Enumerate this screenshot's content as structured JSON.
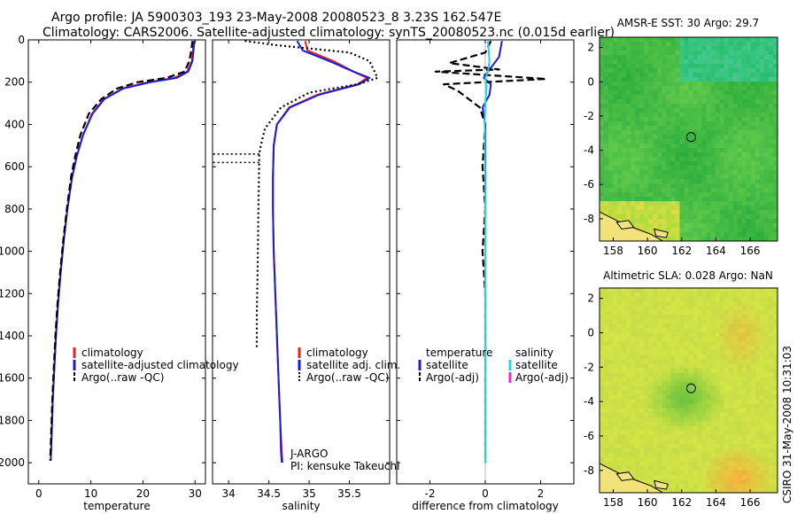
{
  "header": {
    "line1": "Argo profile: JA 5900303_193 23-May-2008 20080523_8 3.23S 162.547E",
    "line2": "Climatology: CARS2006. Satellite-adjusted climatology: synTS_20080523.nc (0.015d earlier)"
  },
  "side_note": "CSIRO 31-May-2008 10:31:03",
  "colors": {
    "climatology": "#e8231e",
    "satellite": "#1a1adc",
    "argo": "#000000",
    "satellite_salinity": "#22d4e8",
    "argo_adj_salinity": "#d930d0"
  },
  "chart_data": [
    {
      "type": "line",
      "panel": "temperature",
      "xlabel": "temperature",
      "ylabel": "",
      "xlim": [
        -2,
        32
      ],
      "ylim": [
        0,
        2100
      ],
      "y_reversed": true,
      "x_ticks": [
        0,
        10,
        20,
        30
      ],
      "y_ticks": [
        0,
        200,
        400,
        600,
        800,
        1000,
        1200,
        1400,
        1600,
        1800,
        2000
      ],
      "legend": [
        "climatology",
        "satellite-adjusted climatology",
        "Argo(..raw -QC)"
      ],
      "series": [
        {
          "name": "climatology",
          "style": "solid",
          "color": "#e8231e",
          "x": [
            29.8,
            29.6,
            29.4,
            28.5,
            26.0,
            21.0,
            16.0,
            12.5,
            10.2,
            8.5,
            7.3,
            6.4,
            5.5,
            4.8,
            4.2,
            3.7,
            3.3,
            3.0,
            2.7,
            2.5,
            2.3
          ],
          "y": [
            5,
            50,
            100,
            150,
            180,
            200,
            230,
            280,
            350,
            450,
            550,
            650,
            800,
            950,
            1100,
            1250,
            1400,
            1550,
            1700,
            1850,
            1990
          ]
        },
        {
          "name": "satellite-adjusted climatology",
          "style": "solid",
          "color": "#1a1adc",
          "x": [
            29.9,
            29.7,
            29.5,
            28.7,
            26.5,
            21.5,
            16.2,
            12.6,
            10.3,
            8.5,
            7.3,
            6.4,
            5.5,
            4.8,
            4.2,
            3.7,
            3.3,
            3.0,
            2.7,
            2.5,
            2.3
          ],
          "y": [
            5,
            50,
            100,
            150,
            180,
            200,
            230,
            280,
            350,
            450,
            550,
            650,
            800,
            950,
            1100,
            1250,
            1400,
            1550,
            1700,
            1850,
            1990
          ]
        },
        {
          "name": "Argo(..raw -QC)",
          "style": "dashed",
          "color": "#000000",
          "x": [
            29.5,
            29.3,
            28.9,
            28.0,
            24.5,
            19.0,
            15.0,
            12.0,
            9.6,
            8.0,
            7.0,
            6.2,
            5.4,
            4.7,
            4.1,
            3.6,
            3.2,
            2.9,
            2.6,
            2.4,
            2.2
          ],
          "y": [
            5,
            50,
            100,
            150,
            180,
            200,
            230,
            280,
            350,
            450,
            550,
            650,
            800,
            950,
            1100,
            1250,
            1400,
            1550,
            1700,
            1850,
            1990
          ]
        }
      ]
    },
    {
      "type": "line",
      "panel": "salinity",
      "xlabel": "salinity",
      "ylabel": "",
      "xlim": [
        33.8,
        36.0
      ],
      "ylim": [
        0,
        2100
      ],
      "y_reversed": true,
      "x_ticks": [
        34,
        34.5,
        35,
        35.5
      ],
      "y_ticks": [
        0,
        200,
        400,
        600,
        800,
        1000,
        1200,
        1400,
        1600,
        1800,
        2000
      ],
      "legend": [
        "climatology",
        "satellite adj. clim.",
        "Argo(..raw -QC)"
      ],
      "annotations": [
        "J-ARGO",
        "PI: kensuke Takeuchi"
      ],
      "series": [
        {
          "name": "climatology",
          "style": "solid",
          "color": "#e8231e",
          "x": [
            34.95,
            34.98,
            35.3,
            35.55,
            35.72,
            35.6,
            35.1,
            34.75,
            34.6,
            34.56,
            34.55,
            34.55,
            34.56,
            34.58,
            34.6,
            34.62,
            34.64,
            34.66,
            34.67
          ],
          "y": [
            5,
            50,
            100,
            150,
            180,
            210,
            260,
            320,
            400,
            500,
            650,
            800,
            1000,
            1200,
            1400,
            1600,
            1800,
            1950,
            2000
          ]
        },
        {
          "name": "satellite adj. clim.",
          "style": "solid",
          "color": "#1a1adc",
          "x": [
            34.85,
            34.92,
            35.25,
            35.55,
            35.75,
            35.62,
            35.12,
            34.76,
            34.6,
            34.56,
            34.55,
            34.55,
            34.56,
            34.58,
            34.6,
            34.62,
            34.64,
            34.65,
            34.66
          ],
          "y": [
            5,
            50,
            100,
            150,
            180,
            210,
            260,
            320,
            400,
            500,
            650,
            800,
            1000,
            1200,
            1400,
            1600,
            1800,
            1950,
            2000
          ]
        },
        {
          "name": "Argo(..raw -QC)",
          "style": "dotted",
          "color": "#000000",
          "x": [
            34.2,
            34.6,
            35.5,
            35.75,
            35.85,
            35.6,
            35.0,
            34.65,
            34.45,
            34.4,
            34.38,
            34.38,
            34.37,
            34.36,
            34.35,
            34.35
          ],
          "y": [
            5,
            25,
            60,
            100,
            180,
            210,
            250,
            320,
            420,
            500,
            540,
            580,
            800,
            1100,
            1300,
            1460
          ]
        }
      ]
    },
    {
      "type": "line",
      "panel": "difference",
      "xlabel": "difference from climatology",
      "ylabel": "",
      "xlim": [
        -3.2,
        3.2
      ],
      "ylim": [
        0,
        2100
      ],
      "y_reversed": true,
      "x_ticks": [
        -2,
        0,
        2
      ],
      "y_ticks": [
        0,
        200,
        400,
        600,
        800,
        1000,
        1200,
        1400,
        1600,
        1800,
        2000
      ],
      "legend_groups": {
        "temperature": [
          "satellite",
          "Argo(-adj)"
        ],
        "salinity": [
          "satellite",
          "Argo(-adj)"
        ]
      },
      "series": [
        {
          "name": "temperature satellite",
          "style": "solid",
          "color": "#1a1adc",
          "x": [
            0.6,
            0.5,
            0.1,
            -0.05,
            0.2,
            0.15,
            -0.1,
            0.0,
            0.0,
            0.0,
            0.0,
            0.0,
            0.0,
            0.0,
            0.0
          ],
          "y": [
            5,
            80,
            150,
            180,
            210,
            260,
            320,
            400,
            600,
            800,
            1000,
            1200,
            1400,
            1600,
            2000
          ]
        },
        {
          "name": "temperature Argo(-adj)",
          "style": "dashed",
          "color": "#000000",
          "x": [
            0.2,
            0.0,
            -1.3,
            0.5,
            -1.8,
            2.2,
            -1.5,
            -1.0,
            -0.2,
            0.0,
            -0.1,
            0.0,
            -0.1,
            0.0,
            0.0,
            0.0,
            0.0
          ],
          "y": [
            5,
            60,
            110,
            140,
            150,
            185,
            210,
            240,
            320,
            400,
            600,
            800,
            1000,
            1200,
            1400,
            1800,
            2000
          ]
        },
        {
          "name": "salinity satellite",
          "style": "solid",
          "color": "#22d4e8",
          "x": [
            0.1,
            0.15,
            0.1,
            0.0,
            0.05,
            0.0,
            -0.02,
            0.0,
            0.0,
            0.0,
            0.0
          ],
          "y": [
            5,
            100,
            150,
            180,
            220,
            300,
            400,
            800,
            1200,
            1600,
            2000
          ]
        }
      ]
    },
    {
      "type": "heatmap",
      "panel": "sst-map",
      "title": "AMSR-E SST: 30 Argo: 29.7",
      "xlim": [
        157.2,
        167.6
      ],
      "ylim": [
        -9.3,
        2.6
      ],
      "x_ticks": [
        158,
        160,
        162,
        164,
        166
      ],
      "y_ticks": [
        2,
        0,
        -2,
        -4,
        -6,
        -8
      ],
      "marker": {
        "lon": 162.55,
        "lat": -3.23
      }
    },
    {
      "type": "heatmap",
      "panel": "sla-map",
      "title": "Altimetric SLA: 0.028 Argo: NaN",
      "xlim": [
        157.2,
        167.6
      ],
      "ylim": [
        -9.3,
        2.6
      ],
      "x_ticks": [
        158,
        160,
        162,
        164,
        166
      ],
      "y_ticks": [
        2,
        0,
        -2,
        -4,
        -6,
        -8
      ],
      "marker": {
        "lon": 162.55,
        "lat": -3.23
      }
    }
  ]
}
